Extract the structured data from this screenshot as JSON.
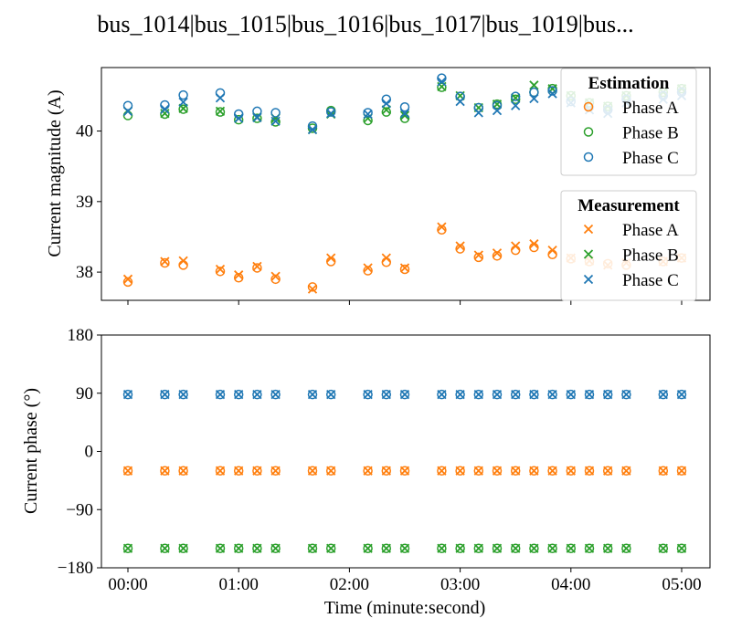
{
  "chart_data": {
    "title": "bus_1014|bus_1015|bus_1016|bus_1017|bus_1019|bus...",
    "colors": {
      "Phase A": "#ff7f0e",
      "Phase B": "#2ca02c",
      "Phase C": "#1f77b4"
    },
    "x": [
      "00:00",
      "00:20",
      "00:30",
      "00:50",
      "01:00",
      "01:10",
      "01:20",
      "01:40",
      "01:50",
      "02:10",
      "02:20",
      "02:30",
      "02:50",
      "03:00",
      "03:10",
      "03:20",
      "03:30",
      "03:40",
      "03:50",
      "04:00",
      "04:10",
      "04:20",
      "04:30",
      "04:50",
      "05:00"
    ],
    "x_seconds": [
      0,
      20,
      30,
      50,
      60,
      70,
      80,
      100,
      110,
      130,
      140,
      150,
      170,
      180,
      190,
      200,
      210,
      220,
      230,
      240,
      250,
      260,
      270,
      290,
      300
    ],
    "xticks": [
      "00:00",
      "01:00",
      "02:00",
      "03:00",
      "04:00",
      "05:00"
    ],
    "xticks_seconds": [
      0,
      60,
      120,
      180,
      240,
      300
    ],
    "xlabel": "Time (minute:second)",
    "panels": [
      {
        "type": "scatter",
        "ylabel": "Current magnitude (A)",
        "ylim": [
          37.6,
          40.9
        ],
        "yticks": [
          38,
          39,
          40
        ],
        "legends": [
          {
            "title": "Estimation",
            "marker": "circle",
            "location": "upper right",
            "entries": [
              "Phase A",
              "Phase B",
              "Phase C"
            ]
          },
          {
            "title": "Measurement",
            "marker": "x",
            "location": "lower right",
            "entries": [
              "Phase A",
              "Phase B",
              "Phase C"
            ]
          }
        ],
        "series": [
          {
            "name": "Phase A",
            "kind": "Estimation",
            "values": [
              37.86,
              38.13,
              38.1,
              38.01,
              37.92,
              38.06,
              37.9,
              37.79,
              38.15,
              38.02,
              38.14,
              38.04,
              38.6,
              38.33,
              38.21,
              38.23,
              38.31,
              38.35,
              38.25,
              38.19,
              38.15,
              38.12,
              38.1,
              38.15,
              38.2
            ]
          },
          {
            "name": "Phase A",
            "kind": "Measurement",
            "values": [
              37.9,
              38.15,
              38.16,
              38.04,
              37.96,
              38.08,
              37.94,
              37.76,
              38.2,
              38.06,
              38.2,
              38.06,
              38.64,
              38.37,
              38.24,
              38.27,
              38.37,
              38.4,
              38.31,
              38.2,
              38.16,
              38.1,
              38.13,
              38.15,
              38.2
            ]
          },
          {
            "name": "Phase B",
            "kind": "Estimation",
            "values": [
              40.22,
              40.24,
              40.31,
              40.27,
              40.16,
              40.18,
              40.13,
              40.04,
              40.29,
              40.15,
              40.27,
              40.18,
              40.62,
              40.49,
              40.33,
              40.38,
              40.45,
              40.55,
              40.6,
              40.5,
              40.4,
              40.35,
              40.5,
              40.55,
              40.6
            ]
          },
          {
            "name": "Phase B",
            "kind": "Measurement",
            "values": [
              40.28,
              40.25,
              40.32,
              40.28,
              40.18,
              40.2,
              40.18,
              40.02,
              40.24,
              40.18,
              40.3,
              40.22,
              40.63,
              40.5,
              40.33,
              40.38,
              40.47,
              40.65,
              40.6,
              40.5,
              40.4,
              40.35,
              40.5,
              40.55,
              40.6
            ]
          },
          {
            "name": "Phase C",
            "kind": "Estimation",
            "values": [
              40.36,
              40.37,
              40.51,
              40.54,
              40.24,
              40.28,
              40.26,
              40.07,
              40.27,
              40.26,
              40.45,
              40.34,
              40.75,
              40.49,
              40.33,
              40.36,
              40.49,
              40.55,
              40.57,
              40.42,
              40.34,
              40.3,
              40.45,
              40.5,
              40.55
            ]
          },
          {
            "name": "Phase C",
            "kind": "Measurement",
            "values": [
              40.28,
              40.31,
              40.41,
              40.47,
              40.18,
              40.19,
              40.14,
              40.02,
              40.25,
              40.24,
              40.39,
              40.25,
              40.7,
              40.42,
              40.26,
              40.29,
              40.36,
              40.46,
              40.53,
              40.4,
              40.3,
              40.25,
              40.4,
              40.45,
              40.5
            ]
          }
        ]
      },
      {
        "type": "scatter",
        "ylabel": "Current phase (°)",
        "ylim": [
          -180,
          180
        ],
        "yticks": [
          -180,
          -90,
          0,
          90,
          180
        ],
        "series": [
          {
            "name": "Phase A",
            "kind": "Estimation",
            "constant": -30
          },
          {
            "name": "Phase A",
            "kind": "Measurement",
            "constant": -30
          },
          {
            "name": "Phase B",
            "kind": "Estimation",
            "constant": -150
          },
          {
            "name": "Phase B",
            "kind": "Measurement",
            "constant": -150
          },
          {
            "name": "Phase C",
            "kind": "Estimation",
            "constant": 88
          },
          {
            "name": "Phase C",
            "kind": "Measurement",
            "constant": 88
          }
        ]
      }
    ]
  }
}
